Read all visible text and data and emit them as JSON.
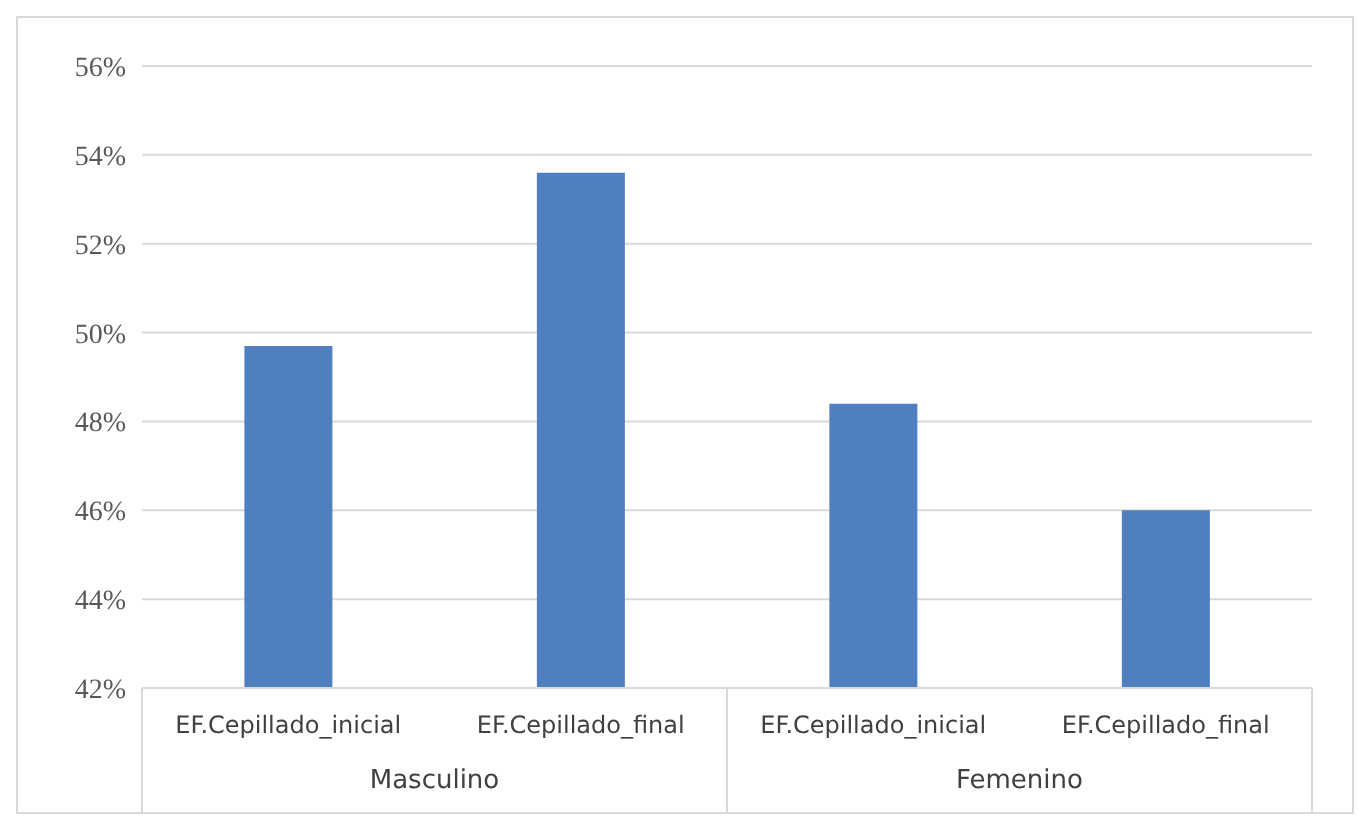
{
  "chart_data": {
    "type": "bar",
    "categories": [
      "EF.Cepillado_inicial",
      "EF.Cepillado_final",
      "EF.Cepillado_inicial",
      "EF.Cepillado_final"
    ],
    "values": [
      49.7,
      53.6,
      48.4,
      46.0
    ],
    "color": "#4f7fbe",
    "ylim": [
      42,
      56
    ],
    "yticks": [
      {
        "value": 42,
        "label": "42%"
      },
      {
        "value": 44,
        "label": "44%"
      },
      {
        "value": 46,
        "label": "46%"
      },
      {
        "value": 48,
        "label": "48%"
      },
      {
        "value": 50,
        "label": "50%"
      },
      {
        "value": 52,
        "label": "52%"
      },
      {
        "value": 54,
        "label": "54%"
      },
      {
        "value": 56,
        "label": "56%"
      }
    ],
    "grid": "y",
    "legend": false,
    "annotations": [
      "Masculino",
      "Femenino"
    ]
  }
}
